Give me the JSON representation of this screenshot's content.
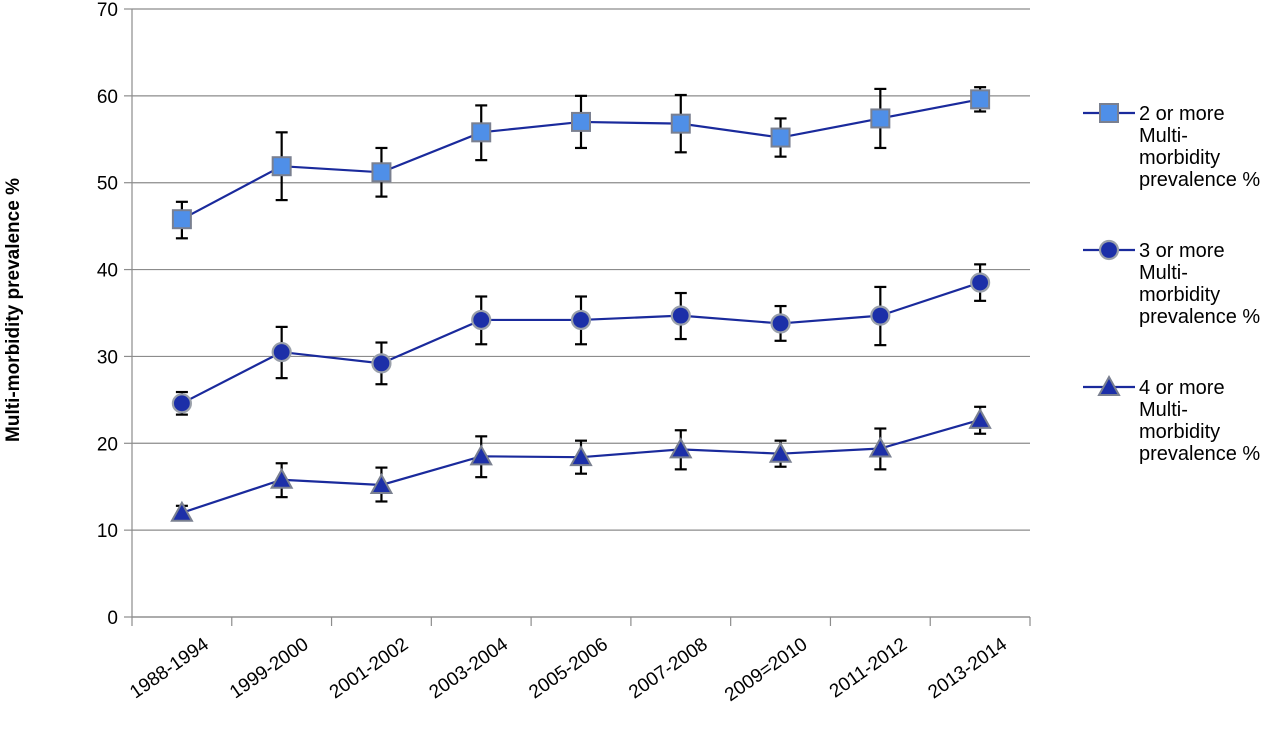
{
  "chart_data": {
    "type": "line",
    "ylabel": "Multi-morbidity prevalence %",
    "xlabel": "",
    "ylim": [
      0,
      70
    ],
    "yticks": [
      0,
      10,
      20,
      30,
      40,
      50,
      60,
      70
    ],
    "grid": true,
    "legend_position": "right",
    "categories": [
      "1988-1994",
      "1999-2000",
      "2001-2002",
      "2003-2004",
      "2005-2006",
      "2007-2008",
      "2009=2010",
      "2011-2012",
      "2013-2014"
    ],
    "series": [
      {
        "name_lines": [
          "2 or more",
          "Multi-",
          "morbidity",
          "prevalence %"
        ],
        "marker": "square",
        "fill": "#4f8fe8",
        "values": [
          45.8,
          51.9,
          51.2,
          55.8,
          57.0,
          56.8,
          55.2,
          57.4,
          59.6
        ],
        "err_upper": [
          47.8,
          55.8,
          54.0,
          58.9,
          60.0,
          60.1,
          57.4,
          60.8,
          61.0
        ],
        "err_lower": [
          43.6,
          48.0,
          48.4,
          52.6,
          54.0,
          53.5,
          53.0,
          54.0,
          58.2
        ]
      },
      {
        "name_lines": [
          "3 or more",
          "Multi-",
          "morbidity",
          "prevalence %"
        ],
        "marker": "circle",
        "fill": "#1c2fa8",
        "values": [
          24.6,
          30.5,
          29.2,
          34.2,
          34.2,
          34.7,
          33.8,
          34.7,
          38.5
        ],
        "err_upper": [
          25.9,
          33.4,
          31.6,
          36.9,
          36.9,
          37.3,
          35.8,
          38.0,
          40.6
        ],
        "err_lower": [
          23.3,
          27.5,
          26.8,
          31.4,
          31.4,
          32.0,
          31.8,
          31.3,
          36.4
        ]
      },
      {
        "name_lines": [
          "4 or more",
          "Multi-",
          "morbidity",
          "prevalence %"
        ],
        "marker": "triangle",
        "fill": "#1c2fa8",
        "values": [
          12.0,
          15.8,
          15.2,
          18.5,
          18.4,
          19.3,
          18.8,
          19.4,
          22.7
        ],
        "err_upper": [
          12.8,
          17.7,
          17.2,
          20.8,
          20.3,
          21.5,
          20.3,
          21.7,
          24.2
        ],
        "err_lower": [
          11.2,
          13.8,
          13.3,
          16.1,
          16.5,
          17.0,
          17.3,
          17.0,
          21.1
        ]
      }
    ],
    "line_color": "#1a2a9c",
    "marker_stroke": "#7a8090"
  }
}
